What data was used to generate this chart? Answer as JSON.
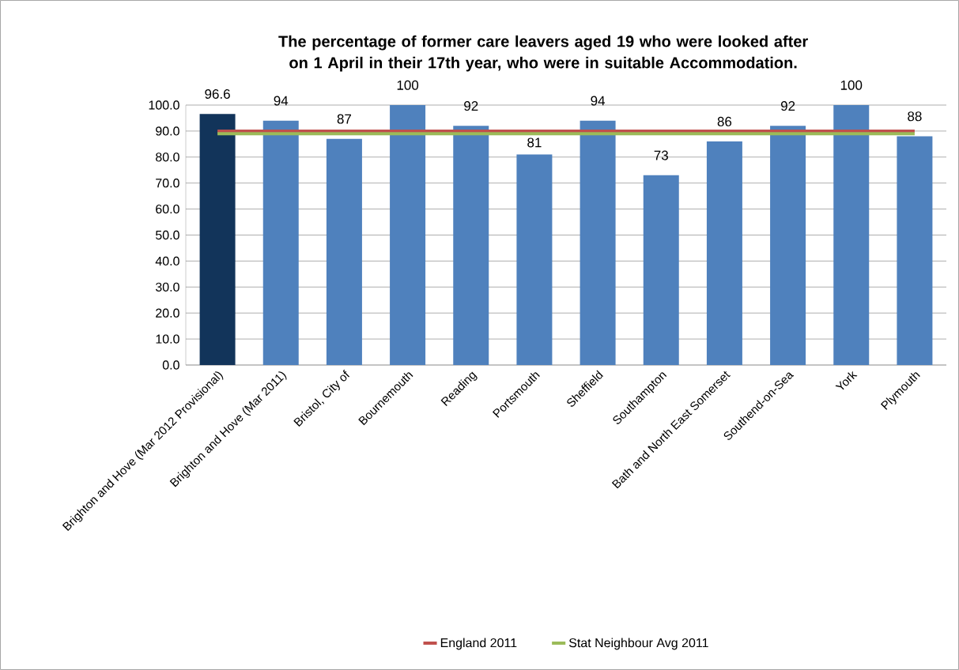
{
  "chart_data": {
    "type": "bar",
    "title": "The percentage of former care leavers aged 19 who were looked after on 1 April in their 17th year, who were in suitable Accommodation.",
    "categories": [
      "Brighton and Hove (Mar 2012 Provisional)",
      "Brighton and Hove (Mar 2011)",
      "Bristol, City of",
      "Bournemouth",
      "Reading",
      "Portsmouth",
      "Sheffield",
      "Southampton",
      "Bath and North East Somerset",
      "Southend-on-Sea",
      "York",
      "Plymouth"
    ],
    "series": [
      {
        "colors": [
          "#12345a",
          "#4f81bd",
          "#4f81bd",
          "#4f81bd",
          "#4f81bd",
          "#4f81bd",
          "#4f81bd",
          "#4f81bd",
          "#4f81bd",
          "#4f81bd",
          "#4f81bd",
          "#4f81bd"
        ],
        "values": [
          96.6,
          94,
          87,
          100,
          92,
          81,
          94,
          73,
          86,
          92,
          100,
          88
        ],
        "value_labels": [
          "96.6",
          "94",
          "87",
          "100",
          "92",
          "81",
          "94",
          "73",
          "86",
          "92",
          "100",
          "88"
        ]
      },
      {
        "type": "line",
        "name": "England 2011",
        "color": "#c0504d",
        "values": [
          90,
          90,
          90,
          90,
          90,
          90,
          90,
          90,
          90,
          90,
          90,
          90
        ]
      },
      {
        "type": "line",
        "name": "Stat Neighbour Avg 2011",
        "color": "#9bbb59",
        "values": [
          89,
          89,
          89,
          89,
          89,
          89,
          89,
          89,
          89,
          89,
          89,
          89
        ]
      }
    ],
    "ylim": [
      0,
      100
    ],
    "yticks": [
      {
        "value": 0,
        "label": "0.0"
      },
      {
        "value": 10,
        "label": "10.0"
      },
      {
        "value": 20,
        "label": "20.0"
      },
      {
        "value": 30,
        "label": "30.0"
      },
      {
        "value": 40,
        "label": "40.0"
      },
      {
        "value": 50,
        "label": "50.0"
      },
      {
        "value": 60,
        "label": "60.0"
      },
      {
        "value": 70,
        "label": "70.0"
      },
      {
        "value": 80,
        "label": "80.0"
      },
      {
        "value": 90,
        "label": "90.0"
      },
      {
        "value": 100,
        "label": "100.0"
      }
    ],
    "grid": "y",
    "legend": "bottom"
  }
}
